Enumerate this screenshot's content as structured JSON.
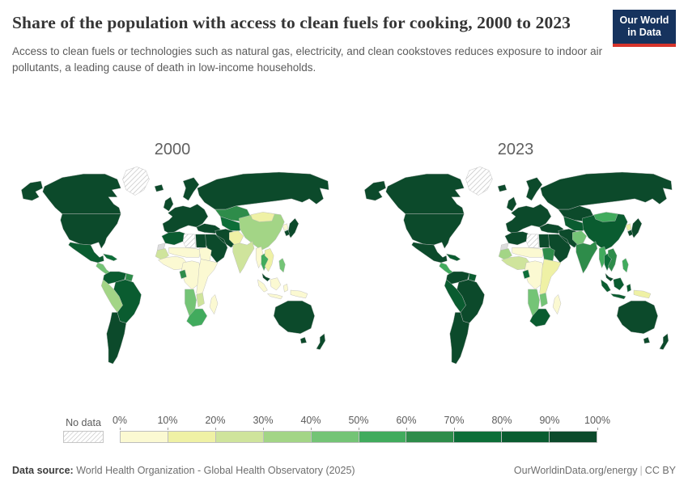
{
  "header": {
    "title": "Share of the population with access to clean fuels for cooking, 2000 to 2023",
    "subtitle": "Access to clean fuels or technologies such as natural gas, electricity, and clean cookstoves reduces exposure to indoor air pollutants, a leading cause of death in low-income households.",
    "logo": {
      "line1": "Our World",
      "line2": "in Data",
      "bg_color": "#16335e",
      "accent_color": "#d7342b"
    }
  },
  "chart_data": {
    "type": "heatmap",
    "subtype": "choropleth-world-map-pair",
    "title": "Share of the population with access to clean fuels for cooking, 2000 to 2023",
    "unit": "% of population with access to clean cooking fuels",
    "value_range": [
      0,
      100
    ],
    "bin_size": 10,
    "maps": [
      {
        "year_label": "2000",
        "value_key": "v2000"
      },
      {
        "year_label": "2023",
        "value_key": "v2023"
      }
    ],
    "legend": {
      "no_data_label": "No data",
      "no_data_pattern": "diagonal-hatch",
      "tick_labels": [
        "0%",
        "10%",
        "20%",
        "30%",
        "40%",
        "50%",
        "60%",
        "70%",
        "80%",
        "90%",
        "100%"
      ],
      "bin_colors": [
        "#fbf9d2",
        "#eff1a5",
        "#cfe49c",
        "#a3d586",
        "#74c476",
        "#41ab5d",
        "#2e8c4a",
        "#0d6e38",
        "#0a5c30",
        "#0c4a2b"
      ]
    },
    "regions": [
      {
        "id": "greenland",
        "name": "Greenland",
        "v2000": null,
        "v2023": null
      },
      {
        "id": "canada",
        "name": "Canada",
        "v2000": 99,
        "v2023": 99
      },
      {
        "id": "usa",
        "name": "United States",
        "v2000": 99,
        "v2023": 99
      },
      {
        "id": "mexico",
        "name": "Mexico",
        "v2000": 85,
        "v2023": 95
      },
      {
        "id": "central_america",
        "name": "Central America",
        "v2000": 45,
        "v2023": 52
      },
      {
        "id": "caribbean",
        "name": "Caribbean",
        "v2000": 78,
        "v2023": 85
      },
      {
        "id": "colombia_venezuela",
        "name": "Colombia & Venezuela",
        "v2000": 88,
        "v2023": 96
      },
      {
        "id": "guyanas",
        "name": "Guyanas",
        "v2000": 60,
        "v2023": 80
      },
      {
        "id": "brazil",
        "name": "Brazil",
        "v2000": 88,
        "v2023": 97
      },
      {
        "id": "peru_bolivia",
        "name": "Peru & Bolivia",
        "v2000": 38,
        "v2023": 88
      },
      {
        "id": "argentina_chile",
        "name": "Argentina & Chile",
        "v2000": 95,
        "v2023": 98
      },
      {
        "id": "europe",
        "name": "Europe",
        "v2000": 98,
        "v2023": 99
      },
      {
        "id": "russia",
        "name": "Russia",
        "v2000": 95,
        "v2023": 98
      },
      {
        "id": "kazakhstan",
        "name": "Kazakhstan",
        "v2000": 67,
        "v2023": 92
      },
      {
        "id": "central_asia",
        "name": "Central Asia",
        "v2000": 78,
        "v2023": 88
      },
      {
        "id": "turkey_caucasus",
        "name": "Turkey & Caucasus",
        "v2000": 90,
        "v2023": 96
      },
      {
        "id": "middle_east",
        "name": "Middle East",
        "v2000": 92,
        "v2023": 97
      },
      {
        "id": "china",
        "name": "China",
        "v2000": 36,
        "v2023": 85
      },
      {
        "id": "mongolia",
        "name": "Mongolia",
        "v2000": 16,
        "v2023": 56
      },
      {
        "id": "pakistan_afghanistan",
        "name": "Pakistan & Afghanistan",
        "v2000": 14,
        "v2023": 42
      },
      {
        "id": "india",
        "name": "India",
        "v2000": 22,
        "v2023": 64
      },
      {
        "id": "myanmar",
        "name": "Myanmar",
        "v2000": 5,
        "v2023": 55
      },
      {
        "id": "thailand",
        "name": "Thailand",
        "v2000": 55,
        "v2023": 75
      },
      {
        "id": "vietnam_laos",
        "name": "Vietnam, Laos & Cambodia",
        "v2000": 12,
        "v2023": 68
      },
      {
        "id": "malaysia",
        "name": "Malaysia",
        "v2000": 93,
        "v2023": 97
      },
      {
        "id": "indonesia",
        "name": "Indonesia",
        "v2000": 4,
        "v2023": 85
      },
      {
        "id": "papua_new_guinea",
        "name": "Papua New Guinea",
        "v2000": 4,
        "v2023": 13
      },
      {
        "id": "philippines",
        "name": "Philippines",
        "v2000": 45,
        "v2023": 50
      },
      {
        "id": "japan",
        "name": "Japan",
        "v2000": 98,
        "v2023": 99
      },
      {
        "id": "korea_north",
        "name": "North Korea",
        "v2000": 8,
        "v2023": 11
      },
      {
        "id": "korea_south",
        "name": "South Korea",
        "v2000": 92,
        "v2023": 98
      },
      {
        "id": "maghreb",
        "name": "Morocco, Algeria & Tunisia",
        "v2000": 88,
        "v2023": 98
      },
      {
        "id": "libya",
        "name": "Libya",
        "v2000": null,
        "v2023": null
      },
      {
        "id": "egypt",
        "name": "Egypt",
        "v2000": 95,
        "v2023": 99
      },
      {
        "id": "western_sahara",
        "name": "Western Sahara",
        "v2000": null,
        "v2023": null,
        "no_data_fill": "#dcdcdc"
      },
      {
        "id": "mauritania_senegal",
        "name": "Mauritania & Senegal",
        "v2000": 24,
        "v2023": 38
      },
      {
        "id": "sahel",
        "name": "Sahel (Mali, Niger, Chad)",
        "v2000": 2,
        "v2023": 6
      },
      {
        "id": "sudan",
        "name": "Sudan",
        "v2000": 3,
        "v2023": 63
      },
      {
        "id": "west_africa",
        "name": "West Africa coast",
        "v2000": 4,
        "v2023": 25
      },
      {
        "id": "central_africa",
        "name": "Central Africa (DRC)",
        "v2000": 2,
        "v2023": 8
      },
      {
        "id": "gabon",
        "name": "Gabon",
        "v2000": 65,
        "v2023": 78
      },
      {
        "id": "east_africa",
        "name": "East Africa & Horn",
        "v2000": 2,
        "v2023": 12
      },
      {
        "id": "angola_namibia",
        "name": "Angola & Namibia",
        "v2000": 42,
        "v2023": 48
      },
      {
        "id": "botswana_zimbabwe",
        "name": "Botswana & Zimbabwe",
        "v2000": 26,
        "v2023": 45
      },
      {
        "id": "south_africa",
        "name": "South Africa",
        "v2000": 58,
        "v2023": 86
      },
      {
        "id": "madagascar",
        "name": "Madagascar",
        "v2000": 1,
        "v2023": 2
      },
      {
        "id": "australia",
        "name": "Australia",
        "v2000": 96,
        "v2023": 98
      },
      {
        "id": "new_zealand",
        "name": "New Zealand",
        "v2000": 93,
        "v2023": 96
      }
    ]
  },
  "footer": {
    "source_label": "Data source:",
    "source_text": " World Health Organization - Global Health Observatory (2025)",
    "link_text": "OurWorldinData.org/energy",
    "separator": "|",
    "license_text": "CC BY"
  }
}
